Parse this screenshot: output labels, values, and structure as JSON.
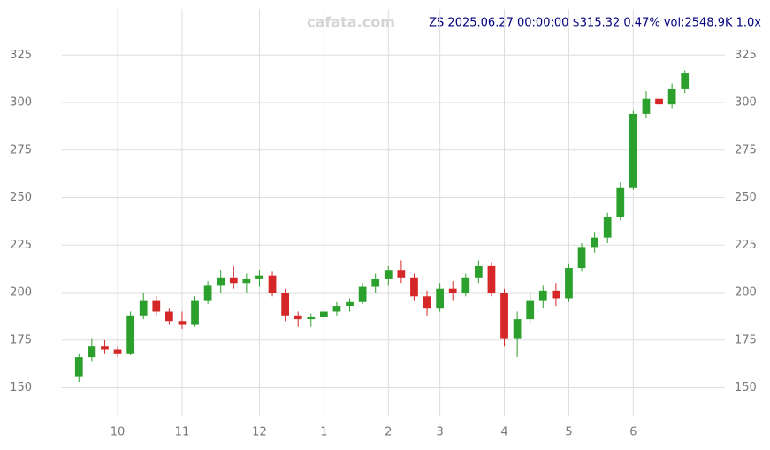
{
  "chart_data": {
    "type": "candlestick",
    "title": "ZS 2025.06.27 00:00:00 $315.32 0.47% vol:2548.9K 1.0x",
    "watermark": "cafata.com",
    "categories": [
      null,
      null,
      null,
      "10",
      null,
      null,
      null,
      null,
      "11",
      null,
      null,
      null,
      null,
      null,
      "12",
      null,
      null,
      null,
      null,
      "1",
      null,
      null,
      null,
      null,
      "2",
      null,
      null,
      null,
      "3",
      null,
      null,
      null,
      null,
      "4",
      null,
      null,
      null,
      null,
      "5",
      null,
      null,
      null,
      null,
      "6",
      null,
      null,
      null,
      null
    ],
    "open": [
      156,
      166,
      172,
      170,
      168,
      188,
      196,
      190,
      185,
      183,
      196,
      204,
      208,
      205,
      207,
      209,
      200,
      188,
      186,
      187,
      190,
      193,
      195,
      203,
      207,
      212,
      208,
      198,
      192,
      202,
      200,
      208,
      214,
      200,
      176,
      186,
      196,
      201,
      197,
      213,
      224,
      229,
      240,
      255,
      294,
      302,
      299,
      307
    ],
    "high": [
      168,
      176,
      175,
      172,
      190,
      200,
      198,
      192,
      190,
      198,
      206,
      212,
      214,
      210,
      212,
      211,
      202,
      190,
      189,
      192,
      195,
      197,
      205,
      210,
      214,
      217,
      210,
      201,
      205,
      206,
      210,
      217,
      216,
      202,
      190,
      200,
      204,
      205,
      215,
      226,
      232,
      242,
      258,
      296,
      306,
      305,
      310,
      317
    ],
    "low": [
      153,
      164,
      168,
      166,
      167,
      186,
      188,
      183,
      181,
      182,
      194,
      200,
      202,
      200,
      203,
      198,
      185,
      182,
      182,
      185,
      188,
      190,
      194,
      200,
      204,
      205,
      196,
      188,
      190,
      196,
      198,
      205,
      198,
      172,
      166,
      184,
      192,
      193,
      195,
      211,
      221,
      226,
      238,
      254,
      292,
      296,
      297,
      305
    ],
    "close": [
      166,
      172,
      170,
      168,
      188,
      196,
      190,
      185,
      183,
      196,
      204,
      208,
      205,
      207,
      209,
      200,
      188,
      186,
      187,
      190,
      193,
      195,
      203,
      207,
      212,
      208,
      198,
      192,
      202,
      200,
      208,
      214,
      200,
      176,
      186,
      196,
      201,
      197,
      213,
      224,
      229,
      240,
      255,
      294,
      302,
      299,
      307,
      315.32
    ],
    "up_color": "#2ca02c",
    "down_color": "#d62728",
    "ylim": [
      140,
      340
    ],
    "yticks": [
      150,
      175,
      200,
      225,
      250,
      275,
      300,
      325
    ],
    "grid": true
  }
}
